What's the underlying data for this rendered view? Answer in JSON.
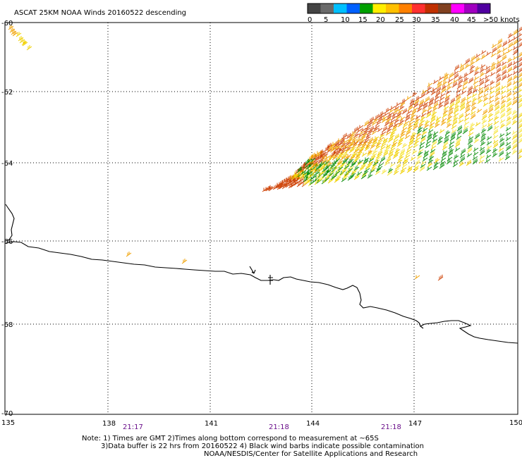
{
  "header": {
    "title": "ASCAT 25KM NOAA Winds 20160522 descending"
  },
  "legend": {
    "colors": [
      "#444444",
      "#6a6a6a",
      "#00c0ff",
      "#0060ff",
      "#00a000",
      "#ffee00",
      "#ffc000",
      "#ff8000",
      "#ff3030",
      "#c03000",
      "#804020",
      "#ff00ff",
      "#a000c0",
      "#5000a0"
    ],
    "ticks": [
      "0",
      "5",
      "10",
      "15",
      "20",
      "25",
      "30",
      "35",
      "40",
      "45",
      ">50 knots"
    ]
  },
  "map": {
    "lon_labels": [
      "135",
      "138",
      "141",
      "144",
      "147",
      "150"
    ],
    "lat_labels": [
      "-60",
      "-62",
      "-64",
      "-66",
      "-68",
      "-70"
    ],
    "times": [
      "21:17",
      "21:18",
      "21:18"
    ]
  },
  "notes": {
    "line1": "Note: 1) Times are GMT 2)Times along bottom correspond to measurement at ~65S",
    "line2": "3)Data buffer is 22 hrs from 20160522 4) Black wind barbs indicate possible contamination",
    "line3": "NOAA/NESDIS/Center for Satellite Applications and Research"
  }
}
